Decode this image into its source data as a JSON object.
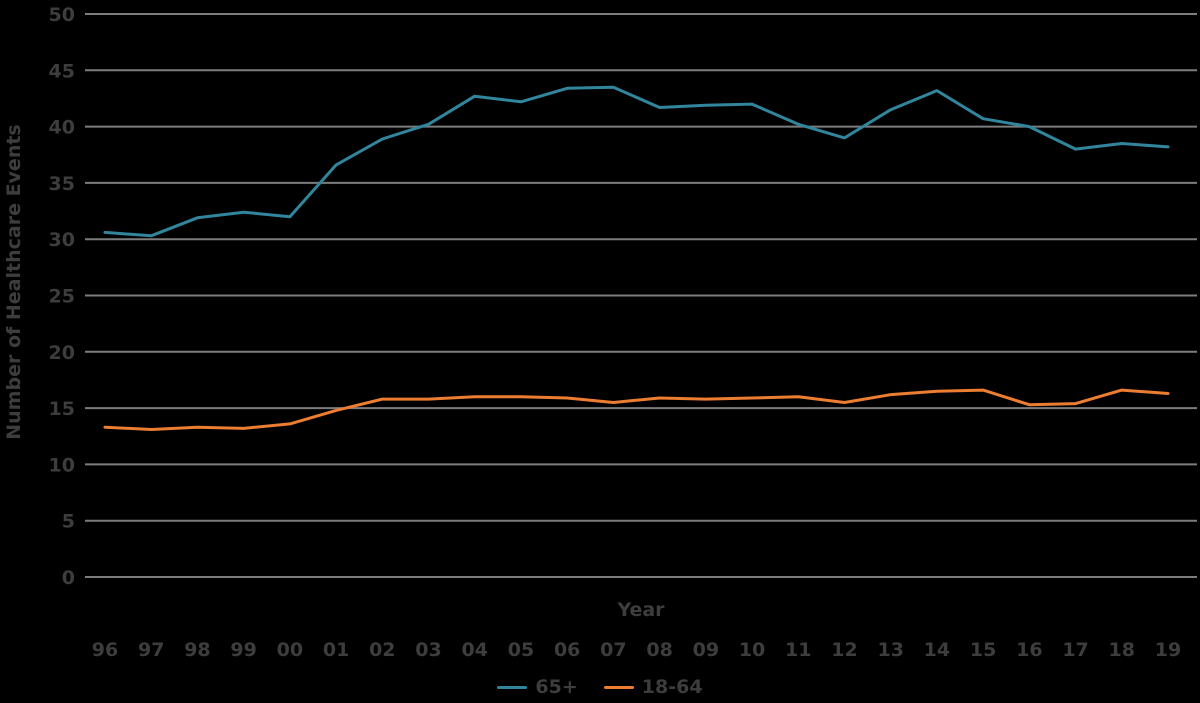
{
  "colors": {
    "background": "#000000",
    "text": "#3d3d3d",
    "gridline": "#7d7d7d",
    "series_65plus": "#31859c",
    "series_18_64": "#ed7d31"
  },
  "chart_data": {
    "type": "line",
    "xlabel": "Year",
    "ylabel": "Number of Healthcare Events",
    "ylim": [
      0,
      50
    ],
    "yticks": [
      0,
      5,
      10,
      15,
      20,
      25,
      30,
      35,
      40,
      45,
      50
    ],
    "grid": "horizontal",
    "legend_position": "bottom",
    "categories": [
      "96",
      "97",
      "98",
      "99",
      "00",
      "01",
      "02",
      "03",
      "04",
      "05",
      "06",
      "07",
      "08",
      "09",
      "10",
      "11",
      "12",
      "13",
      "14",
      "15",
      "16",
      "17",
      "18",
      "19"
    ],
    "series": [
      {
        "name": "65+",
        "color": "#31859c",
        "values": [
          30.6,
          30.3,
          31.9,
          32.4,
          32.0,
          36.6,
          38.9,
          40.2,
          42.7,
          42.2,
          43.4,
          43.5,
          41.7,
          41.9,
          42.0,
          40.2,
          39.0,
          41.5,
          43.2,
          40.7,
          40.0,
          38.0,
          38.5,
          38.2
        ]
      },
      {
        "name": "18-64",
        "color": "#ed7d31",
        "values": [
          13.3,
          13.1,
          13.3,
          13.2,
          13.6,
          14.8,
          15.8,
          15.8,
          16.0,
          16.0,
          15.9,
          15.5,
          15.9,
          15.8,
          15.9,
          16.0,
          15.5,
          16.2,
          16.5,
          16.6,
          15.3,
          15.4,
          16.6,
          16.3
        ]
      }
    ]
  }
}
